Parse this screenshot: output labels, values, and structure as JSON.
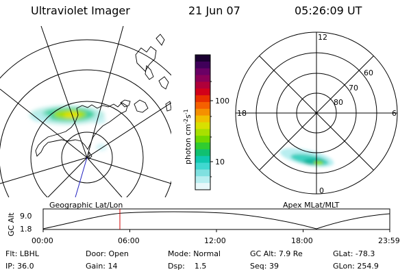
{
  "header": {
    "title": "Ultraviolet Imager",
    "date": "21 Jun 07",
    "time": "05:26:09 UT"
  },
  "colorbar": {
    "label": "photon cm",
    "label_exp1": "-2",
    "label_s": "s",
    "label_exp2": "-1",
    "ticks": [
      "100",
      "10"
    ],
    "colors": [
      "#1a0030",
      "#40005a",
      "#6a0065",
      "#8a0058",
      "#b0003a",
      "#d2001a",
      "#e83000",
      "#f56000",
      "#f59000",
      "#f0c000",
      "#d8e000",
      "#a8e000",
      "#70d800",
      "#30cc30",
      "#10c070",
      "#10c8b0",
      "#40d8d0",
      "#80e0e0",
      "#b8eef0",
      "#e8f8fa"
    ],
    "color_meaning": "bottom = low intensity (white/cyan), top = high intensity (black/purple)"
  },
  "left_map": {
    "label": "Geographic Lat/Lon"
  },
  "right_map": {
    "label": "Apex MLat/MLT",
    "mlt_labels": {
      "top": "12",
      "left": "18",
      "right": "6",
      "bottom": "0"
    },
    "lat_labels": [
      "60",
      "70",
      "80"
    ]
  },
  "altitude_plot": {
    "ylabel": "GC Alt",
    "y_ticks": [
      "9.0",
      "1.8"
    ],
    "x_ticks": [
      "00:00",
      "06:00",
      "12:00",
      "18:00",
      "23:59"
    ],
    "current_time_marker": "05:26",
    "marker_color": "#d00000"
  },
  "info": {
    "flt_label": "Flt:",
    "flt_value": "LBHL",
    "ip_label": "IP:",
    "ip_value": "36.0",
    "door_label": "Door:",
    "door_value": "Open",
    "gain_label": "Gain:",
    "gain_value": "14",
    "mode_label": "Mode:",
    "mode_value": "Normal",
    "dsp_label": "Dsp:",
    "dsp_value": "1.5",
    "gcalt_label": "GC Alt:",
    "gcalt_value": "7.9 Re",
    "seq_label": "Seq:",
    "seq_value": "39",
    "glat_label": "GLat:",
    "glat_value": "-78.3",
    "glon_label": "GLon:",
    "glon_value": "254.9"
  }
}
